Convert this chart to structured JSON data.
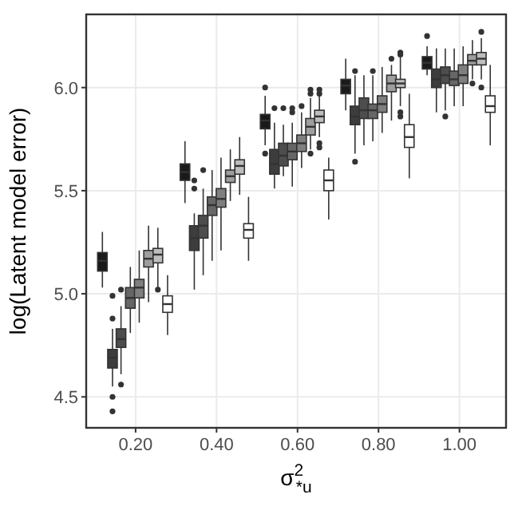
{
  "chart_data": {
    "type": "box",
    "xlabel": "σ$^{2}$$_{*u}$",
    "ylabel": "log(Latent model error)",
    "xlim": [
      0.078,
      1.115
    ],
    "xticks": [
      {
        "value": 0.2,
        "label": "0.20"
      },
      {
        "value": 0.4,
        "label": "0.40"
      },
      {
        "value": 0.6,
        "label": "0.60"
      },
      {
        "value": 0.8,
        "label": "0.80"
      },
      {
        "value": 1.0,
        "label": "1.00"
      }
    ],
    "ylim": [
      4.35,
      6.355
    ],
    "yticks": [
      {
        "value": 4.5,
        "label": "4.5"
      },
      {
        "value": 5.0,
        "label": "5.0"
      },
      {
        "value": 5.5,
        "label": "5.5"
      },
      {
        "value": 6.0,
        "label": "6.0"
      }
    ],
    "grid": true,
    "series": [
      {
        "color": "#1a1a1a",
        "x": [
          0.118,
          0.322,
          0.52,
          0.719,
          0.92
        ],
        "boxes": [
          {
            "low": 5.03,
            "q1": 5.11,
            "median": 5.16,
            "q3": 5.2,
            "high": 5.3
          },
          {
            "low": 5.44,
            "q1": 5.55,
            "median": 5.59,
            "q3": 5.63,
            "high": 5.74
          },
          {
            "low": 5.72,
            "q1": 5.8,
            "median": 5.84,
            "q3": 5.87,
            "high": 5.96,
            "outliers": [
              6.0,
              5.68
            ]
          },
          {
            "low": 5.89,
            "q1": 5.97,
            "median": 6.01,
            "q3": 6.04,
            "high": 6.14
          },
          {
            "low": 6.06,
            "q1": 6.09,
            "median": 6.12,
            "q3": 6.15,
            "high": 6.2,
            "outliers": [
              6.25
            ]
          }
        ]
      },
      {
        "color": "#3d3d3d",
        "x": [
          0.143,
          0.345,
          0.543,
          0.742,
          0.943
        ],
        "boxes": [
          {
            "low": 4.55,
            "q1": 4.64,
            "median": 4.69,
            "q3": 4.73,
            "high": 4.83,
            "outliers": [
              4.99,
              4.88,
              4.5,
              4.43
            ]
          },
          {
            "low": 5.02,
            "q1": 5.21,
            "median": 5.27,
            "q3": 5.33,
            "high": 5.39,
            "outliers": [
              5.55,
              5.51
            ]
          },
          {
            "low": 5.51,
            "q1": 5.58,
            "median": 5.63,
            "q3": 5.7,
            "high": 5.83,
            "outliers": [
              5.9
            ]
          },
          {
            "low": 5.68,
            "q1": 5.82,
            "median": 5.86,
            "q3": 5.91,
            "high": 6.06,
            "outliers": [
              6.08,
              5.64
            ]
          },
          {
            "low": 5.88,
            "q1": 6.0,
            "median": 6.04,
            "q3": 6.09,
            "high": 6.19
          }
        ]
      },
      {
        "color": "#4d4d4d",
        "x": [
          0.164,
          0.367,
          0.565,
          0.764,
          0.965
        ],
        "boxes": [
          {
            "low": 4.61,
            "q1": 4.74,
            "median": 4.78,
            "q3": 4.83,
            "high": 4.94,
            "outliers": [
              5.02,
              4.56
            ]
          },
          {
            "low": 5.09,
            "q1": 5.27,
            "median": 5.33,
            "q3": 5.38,
            "high": 5.51,
            "outliers": [
              5.6
            ]
          },
          {
            "low": 5.57,
            "q1": 5.62,
            "median": 5.67,
            "q3": 5.73,
            "high": 5.82,
            "outliers": [
              5.9
            ]
          },
          {
            "low": 5.72,
            "q1": 5.85,
            "median": 5.89,
            "q3": 5.95,
            "high": 6.06
          },
          {
            "low": 5.89,
            "q1": 6.02,
            "median": 6.06,
            "q3": 6.1,
            "high": 6.19,
            "outliers": [
              5.86
            ]
          }
        ]
      },
      {
        "color": "#666666",
        "x": [
          0.187,
          0.389,
          0.587,
          0.786,
          0.987
        ],
        "boxes": [
          {
            "low": 4.81,
            "q1": 4.93,
            "median": 4.98,
            "q3": 5.03,
            "high": 5.13
          },
          {
            "low": 5.16,
            "q1": 5.38,
            "median": 5.43,
            "q3": 5.47,
            "high": 5.6
          },
          {
            "low": 5.52,
            "q1": 5.65,
            "median": 5.69,
            "q3": 5.73,
            "high": 5.83,
            "outliers": [
              5.88,
              5.9
            ]
          },
          {
            "low": 5.74,
            "q1": 5.85,
            "median": 5.89,
            "q3": 5.92,
            "high": 6.06,
            "outliers": [
              6.08
            ]
          },
          {
            "low": 5.91,
            "q1": 6.01,
            "median": 6.04,
            "q3": 6.08,
            "high": 6.19
          }
        ]
      },
      {
        "color": "#7f7f7f",
        "x": [
          0.209,
          0.411,
          0.61,
          0.809,
          1.009
        ],
        "boxes": [
          {
            "low": 4.86,
            "q1": 4.98,
            "median": 5.03,
            "q3": 5.07,
            "high": 5.21
          },
          {
            "low": 5.21,
            "q1": 5.42,
            "median": 5.46,
            "q3": 5.51,
            "high": 5.66
          },
          {
            "low": 5.61,
            "q1": 5.69,
            "median": 5.73,
            "q3": 5.77,
            "high": 5.88,
            "outliers": [
              5.91
            ]
          },
          {
            "low": 5.78,
            "q1": 5.88,
            "median": 5.92,
            "q3": 5.96,
            "high": 6.1
          },
          {
            "low": 5.91,
            "q1": 6.02,
            "median": 6.06,
            "q3": 6.11,
            "high": 6.2
          }
        ]
      },
      {
        "color": "#9e9e9e",
        "x": [
          0.232,
          0.434,
          0.632,
          0.832,
          1.032
        ],
        "boxes": [
          {
            "low": 4.96,
            "q1": 5.13,
            "median": 5.17,
            "q3": 5.21,
            "high": 5.33
          },
          {
            "low": 5.45,
            "q1": 5.54,
            "median": 5.57,
            "q3": 5.6,
            "high": 5.7
          },
          {
            "low": 5.7,
            "q1": 5.77,
            "median": 5.81,
            "q3": 5.85,
            "high": 5.95,
            "outliers": [
              5.97,
              5.99,
              5.68
            ]
          },
          {
            "low": 5.84,
            "q1": 5.98,
            "median": 6.02,
            "q3": 6.06,
            "high": 6.11,
            "outliers": [
              6.14
            ]
          },
          {
            "low": 6.04,
            "q1": 6.11,
            "median": 6.13,
            "q3": 6.16,
            "high": 6.23,
            "outliers": [
              6.02
            ]
          }
        ]
      },
      {
        "color": "#bdbdbd",
        "x": [
          0.255,
          0.457,
          0.654,
          0.854,
          1.054
        ],
        "boxes": [
          {
            "low": 5.03,
            "q1": 5.15,
            "median": 5.19,
            "q3": 5.22,
            "high": 5.32,
            "outliers": [
              5.02
            ]
          },
          {
            "low": 5.48,
            "q1": 5.58,
            "median": 5.62,
            "q3": 5.65,
            "high": 5.76
          },
          {
            "low": 5.76,
            "q1": 5.83,
            "median": 5.86,
            "q3": 5.89,
            "high": 5.96,
            "outliers": [
              5.99,
              5.97,
              5.73,
              5.71
            ]
          },
          {
            "low": 5.91,
            "q1": 6.0,
            "median": 6.02,
            "q3": 6.04,
            "high": 6.15,
            "outliers": [
              6.17,
              6.16,
              5.88,
              5.86
            ]
          },
          {
            "low": 6.04,
            "q1": 6.11,
            "median": 6.14,
            "q3": 6.17,
            "high": 6.24,
            "outliers": [
              6.27,
              6.0
            ]
          }
        ]
      },
      {
        "color": "#ffffff",
        "x": [
          0.279,
          0.479,
          0.677,
          0.876,
          1.076
        ],
        "boxes": [
          {
            "low": 4.8,
            "q1": 4.91,
            "median": 4.95,
            "q3": 4.99,
            "high": 5.09
          },
          {
            "low": 5.16,
            "q1": 5.27,
            "median": 5.31,
            "q3": 5.34,
            "high": 5.47
          },
          {
            "low": 5.36,
            "q1": 5.5,
            "median": 5.55,
            "q3": 5.6,
            "high": 5.66
          },
          {
            "low": 5.56,
            "q1": 5.71,
            "median": 5.76,
            "q3": 5.82,
            "high": 5.97
          },
          {
            "low": 5.72,
            "q1": 5.88,
            "median": 5.91,
            "q3": 5.96,
            "high": 6.11
          }
        ]
      }
    ]
  }
}
